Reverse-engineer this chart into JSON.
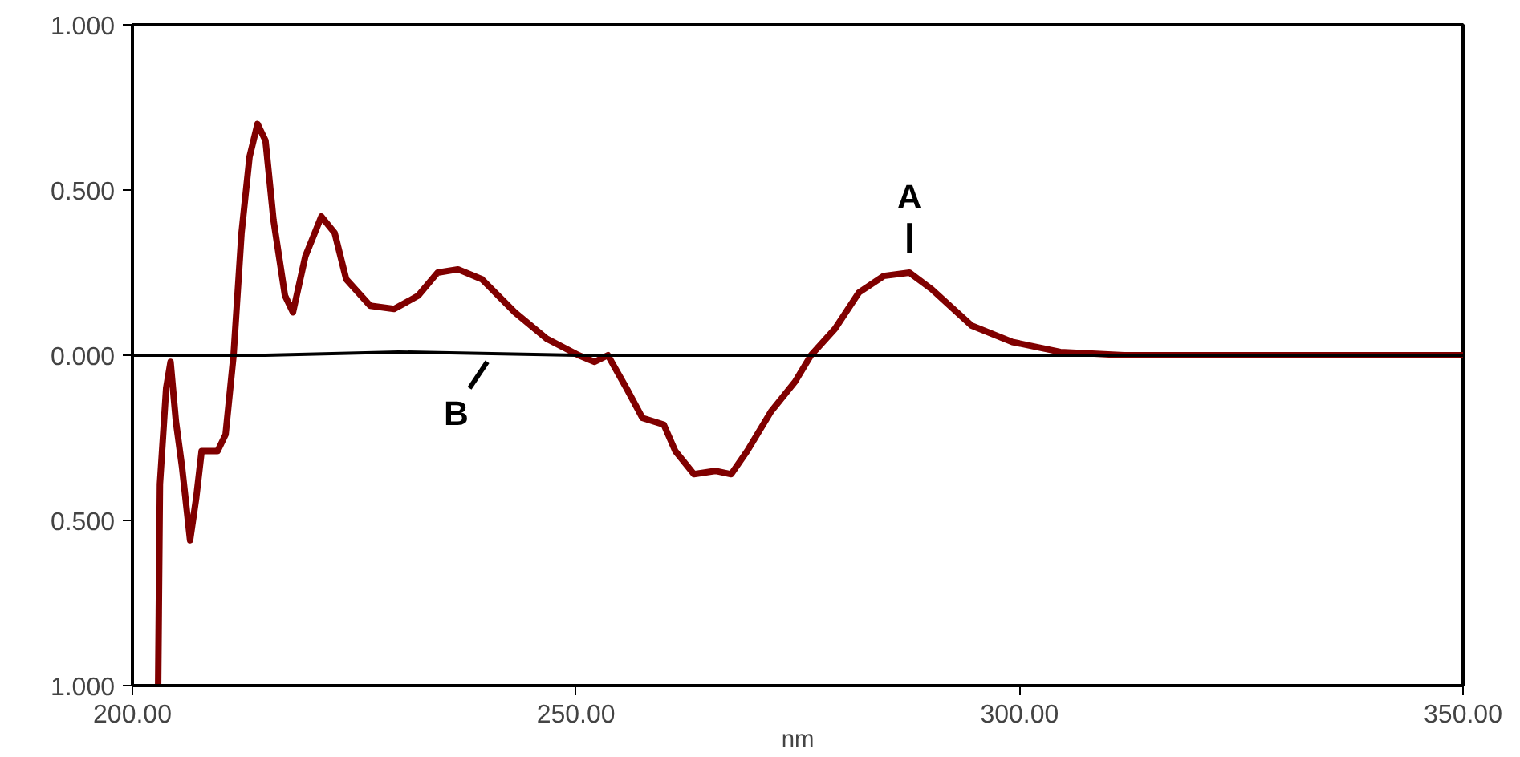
{
  "chart_data": {
    "type": "line",
    "xlabel": "nm",
    "xlim": [
      200,
      350
    ],
    "ylim": [
      -1,
      1
    ],
    "xticks": [
      {
        "value": 200,
        "label": "200.00"
      },
      {
        "value": 250,
        "label": "250.00"
      },
      {
        "value": 300,
        "label": "300.00"
      },
      {
        "value": 350,
        "label": "350.00"
      }
    ],
    "yticks": [
      {
        "value": -1,
        "label": "1.000"
      },
      {
        "value": -0.5,
        "label": "0.500"
      },
      {
        "value": 0,
        "label": "0.000"
      },
      {
        "value": 0.5,
        "label": "0.500"
      },
      {
        "value": 1,
        "label": "1.000"
      }
    ],
    "grid": false,
    "marker": "none",
    "line_style": "solid",
    "series": [
      {
        "color": "#800000",
        "x": [
          202.9,
          203.1,
          203.8,
          204.3,
          204.9,
          205.6,
          206.5,
          207.2,
          207.8,
          209.6,
          210.5,
          211.4,
          212.3,
          213.2,
          214.1,
          215.0,
          215.9,
          217.2,
          218.1,
          219.5,
          221.3,
          222.8,
          224.1,
          226.8,
          229.5,
          232.2,
          234.4,
          236.7,
          239.4,
          243.1,
          246.7,
          250.3,
          252.1,
          253.6,
          255.7,
          257.5,
          259.9,
          261.2,
          263.3,
          265.7,
          267.5,
          269.3,
          272.0,
          274.7,
          276.5,
          279.2,
          281.9,
          284.7,
          287.6,
          290.1,
          294.6,
          299.2,
          304.6,
          311.8,
          329.9,
          350.0
        ],
        "values": [
          -1.0,
          -0.39,
          -0.1,
          -0.02,
          -0.2,
          -0.34,
          -0.56,
          -0.43,
          -0.29,
          -0.29,
          -0.24,
          0.0,
          0.37,
          0.6,
          0.7,
          0.65,
          0.41,
          0.18,
          0.13,
          0.3,
          0.42,
          0.37,
          0.23,
          0.15,
          0.14,
          0.18,
          0.25,
          0.26,
          0.23,
          0.13,
          0.05,
          0.0,
          -0.02,
          0.0,
          -0.1,
          -0.19,
          -0.21,
          -0.29,
          -0.36,
          -0.35,
          -0.36,
          -0.29,
          -0.17,
          -0.08,
          0.0,
          0.08,
          0.19,
          0.24,
          0.25,
          0.2,
          0.09,
          0.04,
          0.01,
          0.0,
          0.0,
          0.0
        ]
      },
      {
        "color": "#000000",
        "x": [
          200,
          215,
          230,
          250,
          300,
          350
        ],
        "values": [
          0.0,
          0.0,
          0.01,
          0.0,
          0.0,
          0.0
        ]
      }
    ],
    "annotations": [
      {
        "text": "A",
        "x": 287.6,
        "y": 0.25
      },
      {
        "text": "B",
        "x": 240,
        "y": 0.0
      }
    ]
  }
}
